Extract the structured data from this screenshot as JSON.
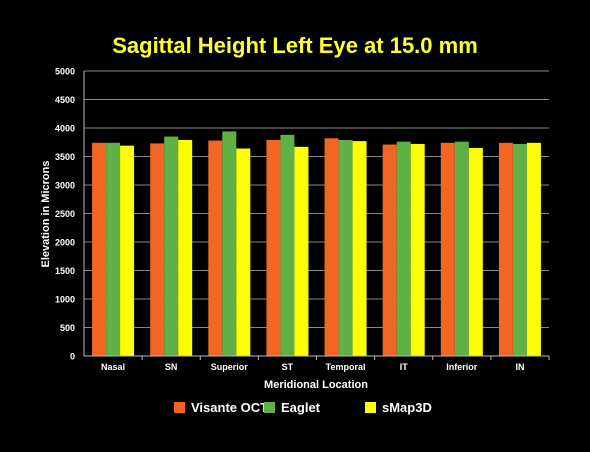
{
  "chart_data": {
    "type": "bar",
    "title": "Sagittal Height Left Eye at 15.0 mm",
    "xlabel": "Meridional Location",
    "ylabel": "Elevation in Microns",
    "ylim": [
      0,
      5000
    ],
    "yticks": [
      0,
      500,
      1000,
      1500,
      2000,
      2500,
      3000,
      3500,
      4000,
      4500,
      5000
    ],
    "grid": true,
    "legend_position": "bottom",
    "categories": [
      "Nasal",
      "SN",
      "Superior",
      "ST",
      "Temporal",
      "IT",
      "Inferior",
      "IN"
    ],
    "series": [
      {
        "name": "Visante OCT",
        "color": "#f26522",
        "values": [
          3740,
          3730,
          3780,
          3790,
          3820,
          3710,
          3740,
          3740
        ]
      },
      {
        "name": "Eaglet",
        "color": "#5fb146",
        "values": [
          3740,
          3850,
          3940,
          3880,
          3790,
          3760,
          3760,
          3720
        ]
      },
      {
        "name": "sMap3D",
        "color": "#ffff00",
        "values": [
          3690,
          3790,
          3640,
          3670,
          3770,
          3720,
          3650,
          3740
        ]
      }
    ]
  },
  "colors": {
    "title": "#ffff33",
    "axis_text": "#ffffff",
    "grid": "#888888",
    "background": "#000000"
  }
}
